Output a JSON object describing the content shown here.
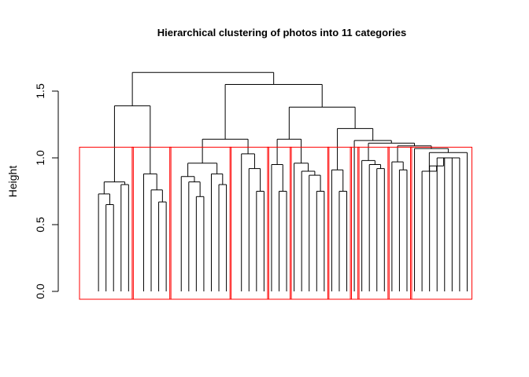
{
  "chart_data": {
    "type": "dendrogram",
    "title": "Hierarchical clustering of photos into 11 categories",
    "xlabel": "",
    "ylabel": "Height",
    "ylim": [
      0,
      1.65
    ],
    "yticks": [
      "0.0",
      "0.5",
      "1.0",
      "1.5"
    ],
    "leaf_count": 53,
    "num_clusters": 11,
    "cluster_cut_height": 1.08,
    "cluster_box_color": "#ff0000",
    "branch_color": "#000000",
    "merges": [
      {
        "id": "n1",
        "children": [
          "L4",
          "L5"
        ],
        "height": 0.65
      },
      {
        "id": "n2",
        "children": [
          "L3",
          "n1"
        ],
        "height": 0.73
      },
      {
        "id": "n3",
        "children": [
          "L6",
          "L7"
        ],
        "height": 0.8
      },
      {
        "id": "n4",
        "children": [
          "n2",
          "n3"
        ],
        "height": 0.82
      },
      {
        "id": "n5",
        "children": [
          "L11",
          "L12"
        ],
        "height": 0.67
      },
      {
        "id": "n6",
        "children": [
          "L10",
          "n5"
        ],
        "height": 0.76
      },
      {
        "id": "n7",
        "children": [
          "L9",
          "n6"
        ],
        "height": 0.88
      },
      {
        "id": "n8",
        "children": [
          "n4",
          "n7"
        ],
        "height": 1.39
      },
      {
        "id": "n9",
        "children": [
          "L16",
          "L17"
        ],
        "height": 0.71
      },
      {
        "id": "n10",
        "children": [
          "L15",
          "n9"
        ],
        "height": 0.82
      },
      {
        "id": "n11",
        "children": [
          "L14",
          "n10"
        ],
        "height": 0.86
      },
      {
        "id": "n12",
        "children": [
          "L19",
          "L20"
        ],
        "height": 0.8
      },
      {
        "id": "n13",
        "children": [
          "L18",
          "n12"
        ],
        "height": 0.88
      },
      {
        "id": "n14",
        "children": [
          "n11",
          "n13"
        ],
        "height": 0.96
      },
      {
        "id": "n15",
        "children": [
          "L24",
          "L25"
        ],
        "height": 0.75
      },
      {
        "id": "n16",
        "children": [
          "L23",
          "n15"
        ],
        "height": 0.92
      },
      {
        "id": "n17",
        "children": [
          "L22",
          "n16"
        ],
        "height": 1.03
      },
      {
        "id": "n18",
        "children": [
          "n14",
          "n17"
        ],
        "height": 1.14
      },
      {
        "id": "n19",
        "children": [
          "L27",
          "L28"
        ],
        "height": 0.75
      },
      {
        "id": "n20",
        "children": [
          "L26",
          "n19"
        ],
        "height": 0.95
      },
      {
        "id": "n21",
        "children": [
          "L32",
          "L33"
        ],
        "height": 0.75
      },
      {
        "id": "n22",
        "children": [
          "L31",
          "n21"
        ],
        "height": 0.87
      },
      {
        "id": "n23",
        "children": [
          "L30",
          "n22"
        ],
        "height": 0.9
      },
      {
        "id": "n24",
        "children": [
          "L29",
          "n23"
        ],
        "height": 0.96
      },
      {
        "id": "n25",
        "children": [
          "n20",
          "n24"
        ],
        "height": 1.14
      },
      {
        "id": "n26",
        "children": [
          "L35",
          "L36"
        ],
        "height": 0.75
      },
      {
        "id": "n27",
        "children": [
          "L34",
          "n26"
        ],
        "height": 0.91
      },
      {
        "id": "n28",
        "children": [
          "L40",
          "L41"
        ],
        "height": 0.92
      },
      {
        "id": "n29",
        "children": [
          "L39",
          "n28"
        ],
        "height": 0.95
      },
      {
        "id": "n30",
        "children": [
          "L38",
          "n29"
        ],
        "height": 0.98
      },
      {
        "id": "n31",
        "children": [
          "L43",
          "L44"
        ],
        "height": 0.91
      },
      {
        "id": "n32",
        "children": [
          "L42",
          "n31"
        ],
        "height": 0.97
      },
      {
        "id": "n33",
        "children": [
          "L50",
          "L51"
        ],
        "height": 1.0
      },
      {
        "id": "n34",
        "children": [
          "L49",
          "n33"
        ],
        "height": 1.0
      },
      {
        "id": "n35",
        "children": [
          "L48",
          "n34"
        ],
        "height": 1.0
      },
      {
        "id": "n36",
        "children": [
          "L47",
          "n35"
        ],
        "height": 0.94
      },
      {
        "id": "n37",
        "children": [
          "L46",
          "n36"
        ],
        "height": 0.9
      },
      {
        "id": "n38",
        "children": [
          "n37",
          "L52"
        ],
        "height": 1.04
      },
      {
        "id": "n39",
        "children": [
          "L45",
          "n38"
        ],
        "height": 1.07
      },
      {
        "id": "n40",
        "children": [
          "n32",
          "n39"
        ],
        "height": 1.09
      },
      {
        "id": "n41",
        "children": [
          "n30",
          "n40"
        ],
        "height": 1.11
      },
      {
        "id": "n42",
        "children": [
          "L37",
          "n41"
        ],
        "height": 1.13
      },
      {
        "id": "n43",
        "children": [
          "n27",
          "n42"
        ],
        "height": 1.22
      },
      {
        "id": "n44",
        "children": [
          "n25",
          "n43"
        ],
        "height": 1.38
      },
      {
        "id": "n45",
        "children": [
          "n18",
          "n44"
        ],
        "height": 1.55
      },
      {
        "id": "n46",
        "children": [
          "n8",
          "n45"
        ],
        "height": 1.64
      }
    ],
    "clusters": [
      {
        "first_leaf": 1,
        "last_leaf": 7
      },
      {
        "first_leaf": 8,
        "last_leaf": 12
      },
      {
        "first_leaf": 13,
        "last_leaf": 20
      },
      {
        "first_leaf": 21,
        "last_leaf": 25
      },
      {
        "first_leaf": 26,
        "last_leaf": 28
      },
      {
        "first_leaf": 29,
        "last_leaf": 33
      },
      {
        "first_leaf": 34,
        "last_leaf": 36
      },
      {
        "first_leaf": 37,
        "last_leaf": 37
      },
      {
        "first_leaf": 38,
        "last_leaf": 41
      },
      {
        "first_leaf": 42,
        "last_leaf": 44
      },
      {
        "first_leaf": 45,
        "last_leaf": 52
      }
    ]
  }
}
